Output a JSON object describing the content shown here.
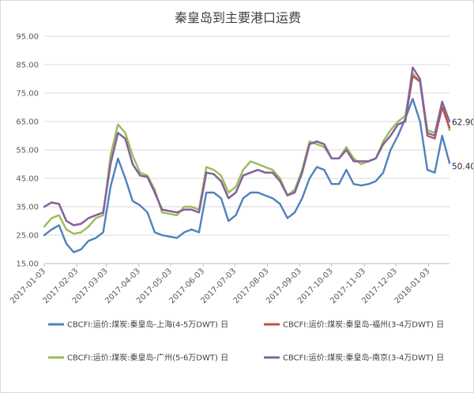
{
  "chart_data": {
    "type": "line",
    "title": "秦皇岛到主要港口运费",
    "xlabel": "",
    "ylabel": "",
    "ylim": [
      15,
      95
    ],
    "yticks": [
      "15.00",
      "25.00",
      "35.00",
      "45.00",
      "55.00",
      "65.00",
      "75.00",
      "85.00",
      "95.00"
    ],
    "xtick_labels": [
      "2017-01-03",
      "2017-02-03",
      "2017-03-03",
      "2017-04-03",
      "2017-05-03",
      "2017-06-03",
      "2017-07-03",
      "2017-08-03",
      "2017-09-03",
      "2017-10-03",
      "2017-11-03",
      "2017-12-03",
      "2018-01-03"
    ],
    "grid": "horizontal",
    "legend_position": "bottom",
    "x": [
      "2017-01-03",
      "2017-01-10",
      "2017-01-17",
      "2017-01-24",
      "2017-01-31",
      "2017-02-07",
      "2017-02-14",
      "2017-02-21",
      "2017-02-28",
      "2017-03-07",
      "2017-03-14",
      "2017-03-21",
      "2017-03-28",
      "2017-04-04",
      "2017-04-11",
      "2017-04-18",
      "2017-04-25",
      "2017-05-02",
      "2017-05-09",
      "2017-05-16",
      "2017-05-23",
      "2017-05-30",
      "2017-06-06",
      "2017-06-13",
      "2017-06-20",
      "2017-06-27",
      "2017-07-04",
      "2017-07-11",
      "2017-07-18",
      "2017-07-25",
      "2017-08-01",
      "2017-08-08",
      "2017-08-15",
      "2017-08-22",
      "2017-08-29",
      "2017-09-05",
      "2017-09-12",
      "2017-09-19",
      "2017-09-26",
      "2017-10-03",
      "2017-10-10",
      "2017-10-17",
      "2017-10-24",
      "2017-10-31",
      "2017-11-07",
      "2017-11-14",
      "2017-11-21",
      "2017-11-28",
      "2017-12-05",
      "2017-12-12",
      "2017-12-19",
      "2017-12-26",
      "2018-01-02",
      "2018-01-09",
      "2018-01-16",
      "2018-01-23"
    ],
    "series": [
      {
        "name": "CBCFI:运价:煤炭:秦皇岛-上海(4-5万DWT) 日",
        "color": "#4f81bd",
        "values": [
          25,
          27,
          28.5,
          22,
          19,
          20,
          23,
          24,
          26,
          42,
          52,
          45,
          37,
          35.5,
          33,
          26,
          25,
          24.5,
          24,
          26,
          27,
          26,
          40,
          40,
          38,
          30,
          32,
          38,
          40,
          40,
          39,
          38,
          36,
          31,
          33,
          38,
          45,
          49,
          48,
          43,
          43,
          48,
          43,
          42.5,
          43,
          44,
          47,
          55,
          60,
          66,
          73,
          65,
          48,
          47,
          60,
          50.4
        ]
      },
      {
        "name": "CBCFI:运价:煤炭:秦皇岛-福州(3-4万DWT) 日",
        "color": "#c0504d",
        "values": [
          35,
          36.5,
          36,
          30,
          28.5,
          29,
          31,
          32,
          33,
          50,
          61,
          59,
          50,
          46,
          45.5,
          40,
          34,
          33.5,
          33,
          34,
          34,
          33,
          47,
          46.5,
          44,
          38,
          40,
          46,
          47,
          48,
          47,
          47,
          44,
          39,
          40,
          47,
          57,
          58,
          57,
          52,
          52,
          55,
          51,
          51,
          51,
          52,
          57,
          60,
          64,
          65,
          81,
          79,
          60,
          59,
          70,
          62.9
        ]
      },
      {
        "name": "CBCFI:运价:煤炭:秦皇岛-广州(5-6万DWT) 日",
        "color": "#9bbb59",
        "values": [
          28,
          31,
          32,
          27,
          25.5,
          26,
          28,
          31,
          32,
          53,
          64,
          61,
          53,
          47,
          46,
          41,
          33,
          32.5,
          32,
          35,
          35,
          34,
          49,
          48,
          46,
          40,
          42,
          48,
          51,
          50,
          49,
          48,
          45,
          39,
          41,
          48,
          58,
          57,
          56,
          52,
          52,
          56,
          52,
          50,
          51,
          52,
          58,
          62,
          65,
          67,
          82,
          79,
          62,
          61,
          72,
          62
        ]
      },
      {
        "name": "CBCFI:运价:煤炭:秦皇岛-南京(3-4万DWT) 日",
        "color": "#8064a2",
        "values": [
          35,
          36.5,
          36,
          30,
          28.5,
          29,
          31,
          32,
          33,
          50,
          61,
          59,
          50,
          46,
          45.5,
          40,
          34,
          33.5,
          33,
          34,
          34,
          33,
          47,
          46.5,
          44,
          38,
          40,
          46,
          47,
          48,
          47,
          47,
          44,
          39,
          40,
          47,
          57,
          58,
          57,
          52,
          52,
          55,
          51,
          51,
          51,
          52,
          57,
          60,
          64,
          65,
          84,
          80,
          61,
          60,
          72,
          65
        ]
      }
    ],
    "annotations": [
      {
        "text": "62.90",
        "series": 1
      },
      {
        "text": "50.40",
        "series": 0
      }
    ]
  }
}
